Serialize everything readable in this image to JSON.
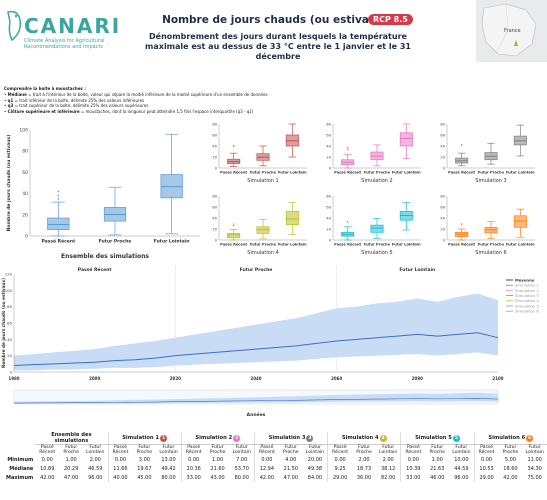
{
  "header": {
    "logo_name": "CANARI",
    "logo_sub": "Climate Analysis for Agricultural Recommendations and Impacts",
    "title": "Nombre de jours chauds (ou estivaux)",
    "badge": "RCP 8.5",
    "subtitle": "Dénombrement des jours durant lesquels la température maximale est au dessus de 33 °C entre le 1 janvier et le 31 décembre",
    "map_label": "France"
  },
  "legend": {
    "title": "Comprendre la boîte à moustaches :",
    "l1_key": "Médiane",
    "l1": " = trait à l'intérieur de la boîte, valeur qui sépare la moitié inférieure de la moitié supérieure d'un ensemble de données",
    "l2_key": "q1",
    "l2": " = trait inférieur de la boîte, délimite 25% des valeurs inférieures",
    "l3_key": "q3",
    "l3": " = trait supérieur de la boîte, délimite 25% des valeurs supérieures",
    "l4_key": "Clôture supérieure et inférieure",
    "l4": " = moustaches, dont la longueur peut atteindre 1,5 fois l'espace interquartile (q3 - q1)"
  },
  "colors": {
    "ensemble": "#5b9bd5",
    "sim1": "#c0504d",
    "sim2": "#e377c2",
    "sim3": "#7f7f7f",
    "sim4": "#bcbd22",
    "sim5": "#17becf",
    "sim6": "#ff7f0e",
    "line": "#3a6fc4",
    "band": "#c9dcf5"
  },
  "chart_data": [
    {
      "type": "box",
      "title": "Ensemble des simulations",
      "ylabel": "Nombre de jours chauds (ou estivaux)",
      "categories": [
        "Passé Récent",
        "Futur Proche",
        "Futur Lointain"
      ],
      "ylim": [
        0,
        100
      ],
      "yticks": [
        0,
        20,
        40,
        60,
        80,
        100
      ],
      "boxes": [
        {
          "min": 0,
          "q1": 6,
          "median": 10.89,
          "q3": 17,
          "max": 32,
          "outliers": [
            35,
            38,
            42
          ]
        },
        {
          "min": 1,
          "q1": 14,
          "median": 20.29,
          "q3": 27,
          "max": 46
        },
        {
          "min": 2,
          "q1": 36,
          "median": 46.59,
          "q3": 58,
          "max": 96
        }
      ]
    },
    {
      "type": "box-small-multiples",
      "categories": [
        "Passé Récent",
        "Futur Proche",
        "Futur Lointain"
      ],
      "ylim": [
        0,
        80
      ],
      "yticks": [
        0,
        20,
        40,
        60,
        80
      ],
      "panels": [
        {
          "name": "Simulation 1",
          "boxes": [
            {
              "min": 3,
              "q1": 8,
              "median": 11.66,
              "q3": 16,
              "max": 27,
              "outliers": [
                40
              ]
            },
            {
              "min": 4,
              "q1": 14,
              "median": 19.67,
              "q3": 26,
              "max": 40
            },
            {
              "min": 20,
              "q1": 40,
              "median": 49.42,
              "q3": 60,
              "max": 80
            }
          ]
        },
        {
          "name": "Simulation 2",
          "boxes": [
            {
              "min": 0,
              "q1": 6,
              "median": 10.36,
              "q3": 15,
              "max": 25,
              "outliers": [
                33,
                37
              ]
            },
            {
              "min": 4,
              "q1": 15,
              "median": 21.6,
              "q3": 29,
              "max": 42
            },
            {
              "min": 17,
              "q1": 40,
              "median": 53.7,
              "q3": 64,
              "max": 80
            }
          ]
        },
        {
          "name": "Simulation 3",
          "boxes": [
            {
              "min": 4,
              "q1": 9,
              "median": 12.94,
              "q3": 18,
              "max": 27,
              "outliers": [
                42
              ]
            },
            {
              "min": 7,
              "q1": 15,
              "median": 21.5,
              "q3": 28,
              "max": 45
            },
            {
              "min": 22,
              "q1": 42,
              "median": 49.38,
              "q3": 58,
              "max": 78
            }
          ]
        },
        {
          "name": "Simulation 4",
          "boxes": [
            {
              "min": 0,
              "q1": 4,
              "median": 9.25,
              "q3": 12,
              "max": 19,
              "outliers": [
                26,
                29
              ]
            },
            {
              "min": 2,
              "q1": 12,
              "median": 18.73,
              "q3": 24,
              "max": 37
            },
            {
              "min": 10,
              "q1": 28,
              "median": 38.12,
              "q3": 52,
              "max": 68
            }
          ]
        },
        {
          "name": "Simulation 5",
          "boxes": [
            {
              "min": 0,
              "q1": 7,
              "median": 10.39,
              "q3": 14,
              "max": 24,
              "outliers": [
                33
              ]
            },
            {
              "min": 3,
              "q1": 14,
              "median": 21.63,
              "q3": 27,
              "max": 39
            },
            {
              "min": 18,
              "q1": 36,
              "median": 44.59,
              "q3": 52,
              "max": 68
            }
          ]
        },
        {
          "name": "Simulation 6",
          "boxes": [
            {
              "min": 0,
              "q1": 6,
              "median": 10.53,
              "q3": 14,
              "max": 20,
              "outliers": [
                29
              ]
            },
            {
              "min": 3,
              "q1": 13,
              "median": 18.6,
              "q3": 23,
              "max": 34
            },
            {
              "min": 5,
              "q1": 23,
              "median": 34.3,
              "q3": 44,
              "max": 56
            }
          ]
        }
      ]
    },
    {
      "type": "area-line",
      "ylabel": "Nombre de jours chauds (ou estivaux)",
      "xlabel": "Années",
      "xlim": [
        1980,
        2100
      ],
      "xticks": [
        1980,
        2000,
        2020,
        2040,
        2060,
        2080,
        2100
      ],
      "ylim": [
        0,
        120
      ],
      "yticks": [
        0,
        20,
        40,
        60,
        80,
        100,
        120
      ],
      "periods": [
        "Passé Récent",
        "Futur Proche",
        "Futur Lointain"
      ],
      "period_bounds": [
        2020,
        2060
      ],
      "x": [
        1980,
        1985,
        1990,
        1995,
        2000,
        2005,
        2010,
        2015,
        2020,
        2025,
        2030,
        2035,
        2040,
        2045,
        2050,
        2055,
        2060,
        2065,
        2070,
        2075,
        2080,
        2085,
        2090,
        2095,
        2100
      ],
      "mean": [
        8,
        9,
        10,
        11,
        12,
        14,
        15,
        17,
        20,
        22,
        24,
        26,
        28,
        30,
        32,
        35,
        38,
        40,
        42,
        44,
        46,
        44,
        46,
        48,
        42
      ],
      "lower": [
        2,
        2,
        3,
        3,
        4,
        5,
        5,
        6,
        8,
        9,
        10,
        11,
        12,
        13,
        14,
        16,
        18,
        19,
        20,
        21,
        22,
        20,
        22,
        24,
        20
      ],
      "upper": [
        20,
        22,
        24,
        26,
        28,
        32,
        35,
        38,
        42,
        46,
        50,
        54,
        58,
        62,
        66,
        72,
        78,
        80,
        84,
        86,
        90,
        86,
        92,
        96,
        88
      ],
      "legend": [
        "Moyenne",
        "Simulation 1",
        "Simulation 2",
        "Simulation 3",
        "Simulation 4",
        "Simulation 5",
        "Simulation 6"
      ]
    }
  ],
  "table": {
    "row_labels": [
      "Minimum",
      "Médiane",
      "Maximum"
    ],
    "col_labels": [
      "Passé Récent",
      "Futur Proche",
      "Futur Lointain"
    ],
    "groups": [
      {
        "name": "Ensemble des simulations",
        "num": "",
        "rows": [
          [
            "0.00",
            "1.00",
            "2.00"
          ],
          [
            "10.89",
            "20.29",
            "46.59"
          ],
          [
            "42.00",
            "47.00",
            "96.00"
          ]
        ]
      },
      {
        "name": "Simulation 1",
        "num": "1",
        "rows": [
          [
            "0.00",
            "3.00",
            "13.00"
          ],
          [
            "11.66",
            "19.67",
            "49.42"
          ],
          [
            "40.00",
            "45.00",
            "80.00"
          ]
        ]
      },
      {
        "name": "Simulation 2",
        "num": "2",
        "rows": [
          [
            "0.00",
            "1.00",
            "7.00"
          ],
          [
            "10.36",
            "21.60",
            "53.70"
          ],
          [
            "33.00",
            "43.00",
            "80.00"
          ]
        ]
      },
      {
        "name": "Simulation 3",
        "num": "3",
        "rows": [
          [
            "0.00",
            "4.00",
            "20.00"
          ],
          [
            "12.94",
            "21.50",
            "49.38"
          ],
          [
            "42.00",
            "47.00",
            "84.00"
          ]
        ]
      },
      {
        "name": "Simulation 4",
        "num": "4",
        "rows": [
          [
            "0.00",
            "2.00",
            "2.00"
          ],
          [
            "9.25",
            "18.73",
            "38.12"
          ],
          [
            "29.00",
            "36.00",
            "82.00"
          ]
        ]
      },
      {
        "name": "Simulation 5",
        "num": "5",
        "rows": [
          [
            "0.00",
            "1.00",
            "10.00"
          ],
          [
            "10.39",
            "21.63",
            "44.59"
          ],
          [
            "33.00",
            "46.00",
            "96.00"
          ]
        ]
      },
      {
        "name": "Simulation 6",
        "num": "6",
        "rows": [
          [
            "0.00",
            "5.00",
            "11.00"
          ],
          [
            "10.53",
            "18.60",
            "34.30"
          ],
          [
            "29.00",
            "42.00",
            "75.00"
          ]
        ]
      }
    ]
  }
}
